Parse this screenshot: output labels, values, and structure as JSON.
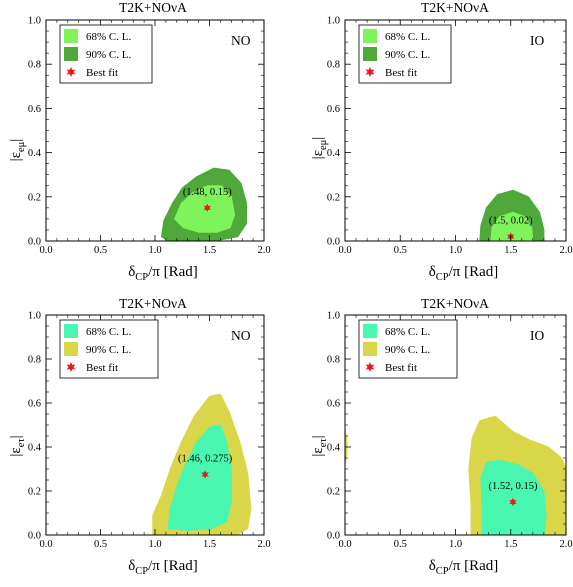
{
  "colors": {
    "emu_inner": "#7ef35a",
    "emu_outer": "#4ea83a",
    "etau_inner": "#49f7b0",
    "etau_outer": "#d9d64a",
    "best_fit": "#e8191e"
  },
  "chart_data": [
    {
      "type": "contour",
      "title": "T2K+NOνA",
      "ordering": "NO",
      "xlabel": "δ_CP/π [Rad]",
      "ylabel": "|ε_eμ|",
      "xlim": [
        0,
        2
      ],
      "ylim": [
        0,
        1
      ],
      "xticks": [
        "0.0",
        "0.5",
        "1.0",
        "1.5",
        "2.0"
      ],
      "yticks": [
        "0.0",
        "0.2",
        "0.4",
        "0.6",
        "0.8",
        "1.0"
      ],
      "legend": [
        "68% C. L.",
        "90% C. L.",
        "Best fit"
      ],
      "legend_placement": "top-left",
      "best_fit": {
        "x": 1.48,
        "y": 0.15,
        "label": "(1.48, 0.15)"
      },
      "contours": [
        {
          "name": "90% C. L.",
          "color_key": "emu_outer",
          "points": [
            [
              1.06,
              0.02
            ],
            [
              1.08,
              0.09
            ],
            [
              1.16,
              0.17
            ],
            [
              1.25,
              0.24
            ],
            [
              1.38,
              0.29
            ],
            [
              1.54,
              0.33
            ],
            [
              1.68,
              0.32
            ],
            [
              1.79,
              0.26
            ],
            [
              1.84,
              0.17
            ],
            [
              1.84,
              0.08
            ],
            [
              1.76,
              0.02
            ],
            [
              1.55,
              0.0
            ],
            [
              1.25,
              0.0
            ],
            [
              1.12,
              0.0
            ]
          ]
        },
        {
          "name": "68% C. L.",
          "color_key": "emu_inner",
          "points": [
            [
              1.18,
              0.1
            ],
            [
              1.24,
              0.17
            ],
            [
              1.35,
              0.22
            ],
            [
              1.48,
              0.25
            ],
            [
              1.61,
              0.25
            ],
            [
              1.7,
              0.2
            ],
            [
              1.73,
              0.12
            ],
            [
              1.69,
              0.06
            ],
            [
              1.57,
              0.04
            ],
            [
              1.4,
              0.04
            ],
            [
              1.26,
              0.06
            ]
          ]
        }
      ]
    },
    {
      "type": "contour",
      "title": "T2K+NOνA",
      "ordering": "IO",
      "xlabel": "δ_CP/π [Rad]",
      "ylabel": "|ε_eμ|",
      "xlim": [
        0,
        2
      ],
      "ylim": [
        0,
        1
      ],
      "xticks": [
        "0.0",
        "0.5",
        "1.0",
        "1.5",
        "2.0"
      ],
      "yticks": [
        "0.0",
        "0.2",
        "0.4",
        "0.6",
        "0.8",
        "1.0"
      ],
      "legend": [
        "68% C. L.",
        "90% C. L.",
        "Best fit"
      ],
      "legend_placement": "top-left",
      "best_fit": {
        "x": 1.5,
        "y": 0.02,
        "label": "(1.5, 0.02)"
      },
      "contours": [
        {
          "name": "90% C. L.",
          "color_key": "emu_outer",
          "points": [
            [
              1.22,
              0.0
            ],
            [
              1.23,
              0.07
            ],
            [
              1.28,
              0.15
            ],
            [
              1.38,
              0.21
            ],
            [
              1.52,
              0.23
            ],
            [
              1.66,
              0.2
            ],
            [
              1.76,
              0.13
            ],
            [
              1.8,
              0.05
            ],
            [
              1.8,
              0.0
            ]
          ]
        },
        {
          "name": "68% C. L.",
          "color_key": "emu_inner",
          "points": [
            [
              1.32,
              0.0
            ],
            [
              1.33,
              0.06
            ],
            [
              1.4,
              0.11
            ],
            [
              1.52,
              0.13
            ],
            [
              1.63,
              0.11
            ],
            [
              1.69,
              0.06
            ],
            [
              1.7,
              0.0
            ]
          ]
        }
      ]
    },
    {
      "type": "contour",
      "title": "T2K+NOνA",
      "ordering": "NO",
      "xlabel": "δ_CP/π [Rad]",
      "ylabel": "|ε_eτ|",
      "xlim": [
        0,
        2
      ],
      "ylim": [
        0,
        1
      ],
      "xticks": [
        "0.0",
        "0.5",
        "1.0",
        "1.5",
        "2.0"
      ],
      "yticks": [
        "0.0",
        "0.2",
        "0.4",
        "0.6",
        "0.8",
        "1.0"
      ],
      "legend": [
        "68% C. L.",
        "90% C. L.",
        "Best fit"
      ],
      "legend_placement": "top-left",
      "best_fit": {
        "x": 1.46,
        "y": 0.275,
        "label": "(1.46, 0.275)"
      },
      "contours": [
        {
          "name": "90% C. L.",
          "color_key": "etau_outer",
          "points": [
            [
              0.98,
              0.0
            ],
            [
              0.98,
              0.09
            ],
            [
              1.06,
              0.18
            ],
            [
              1.14,
              0.3
            ],
            [
              1.24,
              0.42
            ],
            [
              1.36,
              0.54
            ],
            [
              1.5,
              0.63
            ],
            [
              1.6,
              0.64
            ],
            [
              1.68,
              0.56
            ],
            [
              1.78,
              0.42
            ],
            [
              1.85,
              0.28
            ],
            [
              1.88,
              0.12
            ],
            [
              1.85,
              0.03
            ],
            [
              1.75,
              0.0
            ]
          ]
        },
        {
          "name": "68% C. L.",
          "color_key": "etau_inner",
          "points": [
            [
              1.12,
              0.03
            ],
            [
              1.14,
              0.12
            ],
            [
              1.2,
              0.22
            ],
            [
              1.28,
              0.32
            ],
            [
              1.38,
              0.42
            ],
            [
              1.5,
              0.49
            ],
            [
              1.6,
              0.5
            ],
            [
              1.66,
              0.42
            ],
            [
              1.7,
              0.3
            ],
            [
              1.7,
              0.15
            ],
            [
              1.66,
              0.06
            ],
            [
              1.52,
              0.03
            ],
            [
              1.3,
              0.02
            ]
          ]
        }
      ]
    },
    {
      "type": "contour",
      "title": "T2K+NOνA",
      "ordering": "IO",
      "xlabel": "δ_CP/π [Rad]",
      "ylabel": "|ε_eτ|",
      "xlim": [
        0,
        2
      ],
      "ylim": [
        0,
        1
      ],
      "xticks": [
        "0.0",
        "0.5",
        "1.0",
        "1.5",
        "2.0"
      ],
      "yticks": [
        "0.0",
        "0.2",
        "0.4",
        "0.6",
        "0.8",
        "1.0"
      ],
      "legend": [
        "68% C. L.",
        "90% C. L.",
        "Best fit"
      ],
      "legend_placement": "top-left",
      "best_fit": {
        "x": 1.52,
        "y": 0.15,
        "label": "(1.52, 0.15)"
      },
      "contours": [
        {
          "name": "90% C. L.",
          "color_key": "etau_outer",
          "points": [
            [
              1.14,
              0.0
            ],
            [
              1.14,
              0.14
            ],
            [
              1.12,
              0.3
            ],
            [
              1.15,
              0.44
            ],
            [
              1.22,
              0.52
            ],
            [
              1.36,
              0.54
            ],
            [
              1.52,
              0.47
            ],
            [
              1.68,
              0.43
            ],
            [
              1.84,
              0.4
            ],
            [
              1.96,
              0.35
            ],
            [
              2.0,
              0.3
            ],
            [
              2.0,
              0.0
            ]
          ]
        },
        {
          "name": "68% C. L.",
          "color_key": "etau_inner",
          "points": [
            [
              1.24,
              0.0
            ],
            [
              1.24,
              0.12
            ],
            [
              1.23,
              0.26
            ],
            [
              1.28,
              0.33
            ],
            [
              1.4,
              0.34
            ],
            [
              1.56,
              0.32
            ],
            [
              1.7,
              0.28
            ],
            [
              1.8,
              0.2
            ],
            [
              1.82,
              0.08
            ],
            [
              1.8,
              0.0
            ]
          ]
        },
        {
          "name": "90% C. L.",
          "color_key": "etau_outer",
          "points": [
            [
              0.0,
              0.32
            ],
            [
              0.015,
              0.36
            ],
            [
              0.02,
              0.4
            ],
            [
              0.015,
              0.44
            ],
            [
              0.0,
              0.48
            ]
          ]
        }
      ]
    }
  ]
}
